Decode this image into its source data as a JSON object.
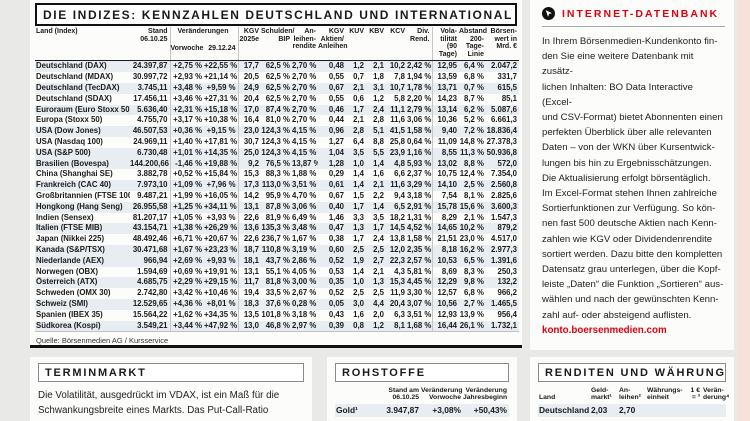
{
  "indices": {
    "title": "DIE INDIZES: KENNZAHLEN DEUTSCHLAND UND INTERNATIONAL",
    "header": {
      "land": "Land (Index)",
      "stand": "Stand\n06.10.25",
      "veraenderungen": "Veränderungen",
      "vorwoche": "Vorwoche",
      "stichtag": "29.12.24",
      "kgv": "KGV\n2025e",
      "schulden_bip": "Schulden/\nBIP",
      "anleihenrendite": "An-\nleihen-\nrendite",
      "kgv_aktien_anleihen": "KGV\nAktien/\nAnleihen",
      "kuv": "KUV",
      "kbv": "KBV",
      "kcv": "KCV",
      "div_rend": "Div.\nRend.",
      "volatilitaet": "Vola-\ntilität\n(90 Tage)",
      "abstand": "Abstand\n200-Tage-\nLinie",
      "boersenwert": "Börsen-\nwert in\nMrd. €"
    },
    "rows": [
      {
        "shaded": true,
        "cells": [
          "Deutschland (DAX)",
          "24.397,87",
          "+2,75 %",
          "+22,55 %",
          "17,7",
          "62,5 %",
          "2,70 %",
          "0,48",
          "1,2",
          "2,1",
          "10,2",
          "2,42 %",
          "12,95",
          "6,4 %",
          "2.047,2"
        ]
      },
      {
        "shaded": false,
        "cells": [
          "Deutschland (MDAX)",
          "30.997,72",
          "+2,93 %",
          "+21,14 %",
          "20,5",
          "62,5 %",
          "2,70 %",
          "0,55",
          "0,7",
          "1,8",
          "7,8",
          "1,94 %",
          "13,59",
          "6,8 %",
          "331,7"
        ]
      },
      {
        "shaded": true,
        "cells": [
          "Deutschland (TecDAX)",
          "3.745,11",
          "+3,48 %",
          "+9,59 %",
          "24,9",
          "62,5 %",
          "2,70 %",
          "0,67",
          "2,1",
          "3,1",
          "10,7",
          "1,78 %",
          "13,71",
          "0,7 %",
          "615,5"
        ]
      },
      {
        "shaded": false,
        "cells": [
          "Deutschland (SDAX)",
          "17.456,11",
          "+3,46 %",
          "+27,31 %",
          "20,4",
          "62,5 %",
          "2,70 %",
          "0,55",
          "0,6",
          "1,2",
          "5,8",
          "2,20 %",
          "14,23",
          "8,7 %",
          "85,1"
        ]
      },
      {
        "shaded": true,
        "cells": [
          "Euroraum (Euro Stoxx 50)",
          "5.636,40",
          "+2,31 %",
          "+15,18 %",
          "17,0",
          "87,4 %",
          "2,70 %",
          "0,46",
          "1,7",
          "2,4",
          "11,1",
          "2,79 %",
          "13,14",
          "6,2 %",
          "5.087,6"
        ]
      },
      {
        "shaded": false,
        "cells": [
          "Europa (Stoxx 50)",
          "4.755,70",
          "+3,17 %",
          "+10,38 %",
          "16,4",
          "81,0 %",
          "2,70 %",
          "0,44",
          "2,1",
          "2,8",
          "11,6",
          "3,06 %",
          "10,36",
          "5,2 %",
          "6.661,3"
        ]
      },
      {
        "shaded": true,
        "cells": [
          "USA (Dow Jones)",
          "46.507,53",
          "+0,36 %",
          "+9,15 %",
          "23,0",
          "124,3 %",
          "4,15 %",
          "0,96",
          "2,8",
          "5,1",
          "41,5",
          "1,58 %",
          "9,40",
          "7,2 %",
          "18.836,4"
        ]
      },
      {
        "shaded": false,
        "cells": [
          "USA (Nasdaq 100)",
          "24.969,11",
          "+1,40 %",
          "+17,81 %",
          "30,7",
          "124,3 %",
          "4,15 %",
          "1,27",
          "6,4",
          "8,8",
          "25,8",
          "0,64 %",
          "11,09",
          "14,8 %",
          "27.378,3"
        ]
      },
      {
        "shaded": true,
        "cells": [
          "USA (S&P 500)",
          "6.730,48",
          "+1,01 %",
          "+14,35 %",
          "25,0",
          "124,3 %",
          "4,15 %",
          "1,04",
          "3,5",
          "5,5",
          "23,9",
          "1,16 %",
          "8,55",
          "11,3 %",
          "50.936,8"
        ]
      },
      {
        "shaded": true,
        "cells": [
          "Brasilien (Bovespa)",
          "144.200,66",
          "-1,46 %",
          "+19,88 %",
          "9,2",
          "76,5 %",
          "13,87 %",
          "1,28",
          "1,0",
          "1,4",
          "4,8",
          "5,93 %",
          "13,02",
          "8,8 %",
          "572,0"
        ]
      },
      {
        "shaded": false,
        "cells": [
          "China (Shanghai SE)",
          "3.882,78",
          "+0,52 %",
          "+15,84 %",
          "15,3",
          "88,3 %",
          "1,88 %",
          "0,29",
          "1,4",
          "1,6",
          "6,6",
          "2,37 %",
          "10,75",
          "12,4 %",
          "7.354,0"
        ]
      },
      {
        "shaded": true,
        "cells": [
          "Frankreich (CAC 40)",
          "7.973,10",
          "+1,09 %",
          "+7,96 %",
          "17,3",
          "113,0 %",
          "3,51 %",
          "0,61",
          "1,4",
          "2,1",
          "11,6",
          "3,29 %",
          "14,10",
          "2,5 %",
          "2.560,8"
        ]
      },
      {
        "shaded": false,
        "cells": [
          "Großbritannien (FTSE 100)",
          "9.487,21",
          "+1,99 %",
          "+16,05 %",
          "14,2",
          "95,9 %",
          "4,70 %",
          "0,67",
          "1,5",
          "2,2",
          "9,4",
          "3,18 %",
          "7,54",
          "8,1 %",
          "2.825,6"
        ]
      },
      {
        "shaded": true,
        "cells": [
          "Hongkong (Hang Seng)",
          "26.955,58",
          "+1,25 %",
          "+34,11 %",
          "13,1",
          "87,8 %",
          "3,06 %",
          "0,40",
          "1,7",
          "1,4",
          "6,5",
          "2,91 %",
          "15,78",
          "15,6 %",
          "3.600,3"
        ]
      },
      {
        "shaded": false,
        "cells": [
          "Indien (Sensex)",
          "81.207,17",
          "+1,05 %",
          "+3,93 %",
          "22,6",
          "81,9 %",
          "6,49 %",
          "1,46",
          "3,3",
          "3,5",
          "18,2",
          "1,31 %",
          "8,29",
          "2,1 %",
          "1.547,3"
        ]
      },
      {
        "shaded": true,
        "cells": [
          "Italien (FTSE MIB)",
          "43.154,71",
          "+1,38 %",
          "+26,29 %",
          "13,6",
          "135,3 %",
          "3,48 %",
          "0,47",
          "1,3",
          "1,7",
          "14,5",
          "4,52 %",
          "14,65",
          "10,2 %",
          "879,2"
        ]
      },
      {
        "shaded": false,
        "cells": [
          "Japan (Nikkei 225)",
          "48.492,46",
          "+6,71 %",
          "+20,67 %",
          "22,6",
          "236,7 %",
          "1,67 %",
          "0,38",
          "1,7",
          "2,4",
          "13,8",
          "1,58 %",
          "21,51",
          "23,0 %",
          "4.517,0"
        ]
      },
      {
        "shaded": true,
        "cells": [
          "Kanada (S&P/TSX)",
          "30.471,68",
          "+1,67 %",
          "+23,23 %",
          "18,7",
          "110,8 %",
          "3,19 %",
          "0,60",
          "2,5",
          "2,5",
          "12,0",
          "2,35 %",
          "8,18",
          "16,2 %",
          "2.977,3"
        ]
      },
      {
        "shaded": true,
        "cells": [
          "Niederlande (AEX)",
          "966,94",
          "+2,69 %",
          "+9,93 %",
          "18,1",
          "43,7 %",
          "2,86 %",
          "0,52",
          "1,9",
          "2,7",
          "22,3",
          "2,57 %",
          "10,53",
          "6,5 %",
          "1.391,6"
        ]
      },
      {
        "shaded": false,
        "cells": [
          "Norwegen (OBX)",
          "1.594,69",
          "+0,69 %",
          "+19,91 %",
          "13,1",
          "55,1 %",
          "4,05 %",
          "0,53",
          "1,4",
          "2,1",
          "4,3",
          "5,81 %",
          "8,69",
          "8,3 %",
          "250,3"
        ]
      },
      {
        "shaded": true,
        "cells": [
          "Österreich (ATX)",
          "4.685,75",
          "+2,29 %",
          "+29,15 %",
          "11,7",
          "81,8 %",
          "3,00 %",
          "0,35",
          "1,0",
          "1,3",
          "15,3",
          "4,45 %",
          "12,29",
          "9,8 %",
          "132,2"
        ]
      },
      {
        "shaded": false,
        "cells": [
          "Schweden (OMX 30)",
          "2.742,80",
          "+3,42 %",
          "+10,46 %",
          "19,4",
          "33,5 %",
          "2,67 %",
          "0,52",
          "2,5",
          "2,5",
          "11,9",
          "3,30 %",
          "12,57",
          "6,8 %",
          "966,2"
        ]
      },
      {
        "shaded": true,
        "cells": [
          "Schweiz (SMI)",
          "12.529,65",
          "+4,36 %",
          "+8,01 %",
          "18,3",
          "37,6 %",
          "0,28 %",
          "0,05",
          "3,0",
          "4,4",
          "20,4",
          "3,07 %",
          "10,56",
          "2,7 %",
          "1.465,5"
        ]
      },
      {
        "shaded": false,
        "cells": [
          "Spanien (IBEX 35)",
          "15.564,22",
          "+1,62 %",
          "+34,35 %",
          "13,5",
          "101,8 %",
          "3,18 %",
          "0,43",
          "1,6",
          "2,0",
          "6,3",
          "3,51 %",
          "12,93",
          "13,9 %",
          "956,4"
        ]
      },
      {
        "shaded": true,
        "cells": [
          "Südkorea (Kospi)",
          "3.549,21",
          "+3,44 %",
          "+47,92 %",
          "13,0",
          "46,8 %",
          "2,97 %",
          "0,39",
          "0,8",
          "1,2",
          "8,1",
          "1,68 %",
          "16,44",
          "26,1 %",
          "1.732,1"
        ]
      }
    ],
    "quelle": "Quelle: Börsenmedien AG / Kursservice"
  },
  "sidebar": {
    "title": "INTERNET-DATENBANK",
    "body": "In Ihrem Börsenmedien-Kundenkonto fin-\nden Sie eine weitere Datenbank mit zusätz-\nlichen Inhalten: BO Data Interactive (Excel-\nund CSV-Format) bietet Abonnenten einen\nperfekten Überblick über alle relevanten\nDaten – von der WKN über Kursentwick-\nlungen bis hin zu Ergebnisschätzungen.\nDie Aktualisierung erfolgt börsentäglich.\nIm Excel-Format stehen Ihnen zahlreiche\nSortierfunktionen zur Verfügung. So kön-\nnen fast 500 deutsche Aktien nach Kenn-\nzahlen wie KGV oder Dividendenrendite\nsortiert werden. Dazu bitte den kompletten\nDatensatz grau unterlegen, über die Kopf-\nleiste „Daten“ die Funktion „Sortieren“ aus-\nwählen und nach der gewünschten Kenn-\nzahl auf- oder absteigend auflisten.",
    "link": "konto.boersenmedien.com"
  },
  "terminmarkt": {
    "title": "TERMINMARKT",
    "body": "Die Volatilität, ausgedrückt im VDAX, ist ein Maß für die\nSchwankungsbreite eines Markts. Das Put-Call-Ratio"
  },
  "rohstoffe": {
    "title": "ROHSTOFFE",
    "headers": [
      "Stand am\n06.10.25",
      "Veränderung\nVorwoche",
      "Veränderung\nJahresbeginn"
    ],
    "row": [
      "Gold¹",
      "3.947,87",
      "+3,08%",
      "+50,43%"
    ]
  },
  "renditen": {
    "title": "RENDITEN UND WÄHRUNGEN",
    "headers": [
      "Land",
      "Geld-\nmarkt¹",
      "An-\nleihen²",
      "Währungs-\neinheit",
      "1 €\n= ³",
      "Verän-\nderung⁴"
    ],
    "row": [
      "Deutschland",
      "2,03",
      "2,70",
      "",
      "",
      ""
    ]
  },
  "colors": {
    "accent_red": "#e3000f",
    "row_shade": "#e8edf2",
    "page_bg": "#e9e9e7"
  }
}
